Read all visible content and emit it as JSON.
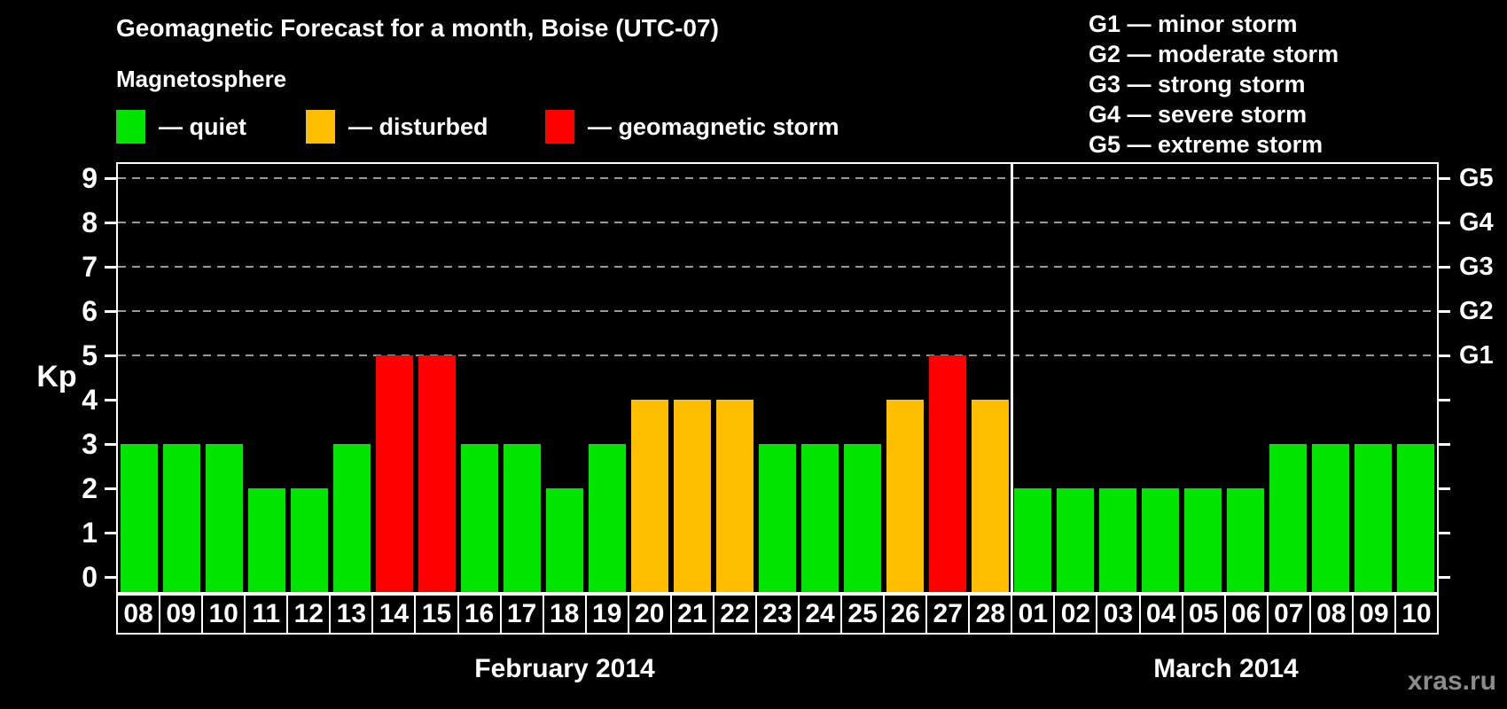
{
  "chart_data": {
    "type": "bar",
    "title": "Geomagnetic Forecast for a month, Boise (UTC-07)",
    "ylabel": "Kp",
    "ylim": [
      0,
      9
    ],
    "y_ticks": [
      0,
      1,
      2,
      3,
      4,
      5,
      6,
      7,
      8,
      9
    ],
    "gridlines_at": [
      5,
      6,
      7,
      8,
      9
    ],
    "grid_style": "dashed",
    "legend_position": "top",
    "right_axis_labels": [
      {
        "value": 5,
        "label": "G1"
      },
      {
        "value": 6,
        "label": "G2"
      },
      {
        "value": 7,
        "label": "G3"
      },
      {
        "value": 8,
        "label": "G4"
      },
      {
        "value": 9,
        "label": "G5"
      }
    ],
    "months": [
      {
        "label": "February 2014",
        "days": [
          "08",
          "09",
          "10",
          "11",
          "12",
          "13",
          "14",
          "15",
          "16",
          "17",
          "18",
          "19",
          "20",
          "21",
          "22",
          "23",
          "24",
          "25",
          "26",
          "27",
          "28"
        ],
        "values": [
          3,
          3,
          3,
          2,
          2,
          3,
          5,
          5,
          3,
          3,
          2,
          3,
          4,
          4,
          4,
          3,
          3,
          3,
          4,
          5,
          4
        ],
        "status": [
          "quiet",
          "quiet",
          "quiet",
          "quiet",
          "quiet",
          "quiet",
          "storm",
          "storm",
          "quiet",
          "quiet",
          "quiet",
          "quiet",
          "disturbed",
          "disturbed",
          "disturbed",
          "quiet",
          "quiet",
          "quiet",
          "disturbed",
          "storm",
          "disturbed"
        ]
      },
      {
        "label": "March 2014",
        "days": [
          "01",
          "02",
          "03",
          "04",
          "05",
          "06",
          "07",
          "08",
          "09",
          "10"
        ],
        "values": [
          2,
          2,
          2,
          2,
          2,
          2,
          3,
          3,
          3,
          3
        ],
        "status": [
          "quiet",
          "quiet",
          "quiet",
          "quiet",
          "quiet",
          "quiet",
          "quiet",
          "quiet",
          "quiet",
          "quiet"
        ]
      }
    ],
    "status_colors": {
      "quiet": "#00E400",
      "disturbed": "#FFBE00",
      "storm": "#FF0000"
    }
  },
  "legend": {
    "heading": "Magnetosphere",
    "items": [
      {
        "label": "— quiet",
        "status": "quiet",
        "color": "#00E400"
      },
      {
        "label": "— disturbed",
        "status": "disturbed",
        "color": "#FFBE00"
      },
      {
        "label": "— geomagnetic storm",
        "status": "storm",
        "color": "#FF0000"
      }
    ]
  },
  "g_legend": [
    "G1 — minor storm",
    "G2 — moderate storm",
    "G3 — strong storm",
    "G4 — severe storm",
    "G5 — extreme storm"
  ],
  "watermark": "xras.ru",
  "colors": {
    "background": "#000000",
    "text": "#FFFFFF",
    "grid": "#999999",
    "frame": "#FFFFFF",
    "watermark": "#8C8C8C"
  }
}
